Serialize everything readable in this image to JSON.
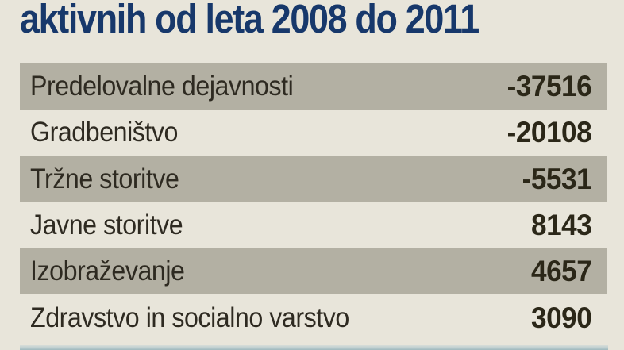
{
  "title": "aktivnih od leta 2008 do 2011",
  "rows": [
    {
      "label": "Predelovalne dejavnosti",
      "value": "-37516"
    },
    {
      "label": "Gradbeništvo",
      "value": "-20108"
    },
    {
      "label": "Tržne storitve",
      "value": "-5531"
    },
    {
      "label": "Javne storitve",
      "value": "8143"
    },
    {
      "label": "Izobraževanje",
      "value": "4657"
    },
    {
      "label": "Zdravstvo in socialno varstvo",
      "value": "3090"
    }
  ],
  "chart_data": {
    "type": "table",
    "title": "aktivnih od leta 2008 do 2011",
    "categories": [
      "Predelovalne dejavnosti",
      "Gradbeništvo",
      "Tržne storitve",
      "Javne storitve",
      "Izobraževanje",
      "Zdravstvo in socialno varstvo"
    ],
    "values": [
      -37516,
      -20108,
      -5531,
      8143,
      4657,
      3090
    ],
    "legend": "none",
    "grid": false,
    "row_shading": "alternate, shaded rows 1/3/5"
  },
  "colors": {
    "background": "#e8e5da",
    "title_navy": "#17386b",
    "row_shaded": "#b3b0a3",
    "text_dark": "#2e2a21",
    "bottom_bar_teal": "#9fb8bc"
  }
}
